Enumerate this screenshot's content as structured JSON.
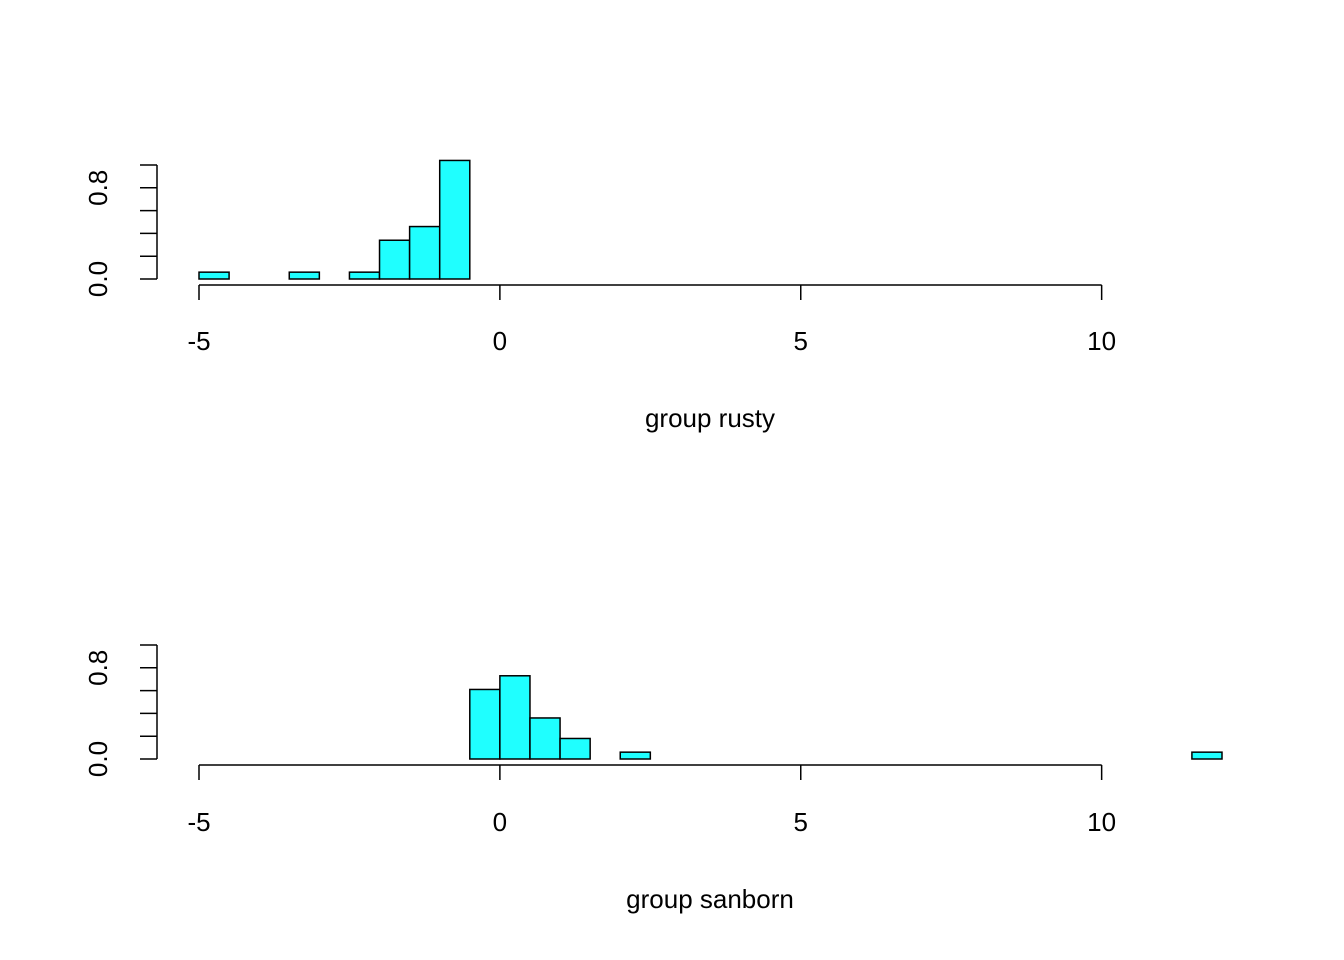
{
  "chart_data": [
    {
      "type": "histogram",
      "x_label": "group rusty",
      "color": "#1fffff",
      "bins": [
        -5,
        -4.5,
        -4,
        -3.5,
        -3,
        -2.5,
        -2,
        -1.5,
        -1,
        -0.5,
        0,
        0.5,
        1,
        1.5,
        2,
        2.5,
        3,
        3.5,
        4,
        4.5,
        5,
        5.5,
        6,
        6.5,
        7,
        7.5,
        8,
        8.5,
        9,
        9.5,
        10,
        10.5,
        11,
        11.5,
        12
      ],
      "values": [
        0.06,
        0,
        0,
        0.06,
        0,
        0.06,
        0.34,
        0.46,
        1.04,
        0,
        0,
        0,
        0,
        0,
        0,
        0,
        0,
        0,
        0,
        0,
        0,
        0,
        0,
        0,
        0,
        0,
        0,
        0,
        0,
        0,
        0,
        0,
        0,
        0
      ],
      "xlim": [
        -5,
        12
      ],
      "xticks": [
        -5,
        0,
        5,
        10
      ],
      "ylim": [
        0,
        1.04
      ],
      "yticks": [
        {
          "value": 0,
          "label": "0.0"
        },
        {
          "value": 0.8,
          "label": "0.8"
        }
      ],
      "yminorticks": [
        0.2,
        0.4,
        0.6,
        1.0
      ]
    },
    {
      "type": "histogram",
      "x_label": "group sanborn",
      "color": "#1fffff",
      "bins": [
        -5,
        -4.5,
        -4,
        -3.5,
        -3,
        -2.5,
        -2,
        -1.5,
        -1,
        -0.5,
        0,
        0.5,
        1,
        1.5,
        2,
        2.5,
        3,
        3.5,
        4,
        4.5,
        5,
        5.5,
        6,
        6.5,
        7,
        7.5,
        8,
        8.5,
        9,
        9.5,
        10,
        10.5,
        11,
        11.5,
        12
      ],
      "values": [
        0,
        0,
        0,
        0,
        0,
        0,
        0,
        0,
        0,
        0.61,
        0.73,
        0.36,
        0.18,
        0,
        0.06,
        0,
        0,
        0,
        0,
        0,
        0,
        0,
        0,
        0,
        0,
        0,
        0,
        0,
        0,
        0,
        0,
        0,
        0,
        0.06
      ],
      "xlim": [
        -5,
        12
      ],
      "xticks": [
        -5,
        0,
        5,
        10
      ],
      "ylim": [
        0,
        1.04
      ],
      "yticks": [
        {
          "value": 0,
          "label": "0.0"
        },
        {
          "value": 0.8,
          "label": "0.8"
        }
      ],
      "yminorticks": [
        0.2,
        0.4,
        0.6,
        1.0
      ]
    }
  ]
}
